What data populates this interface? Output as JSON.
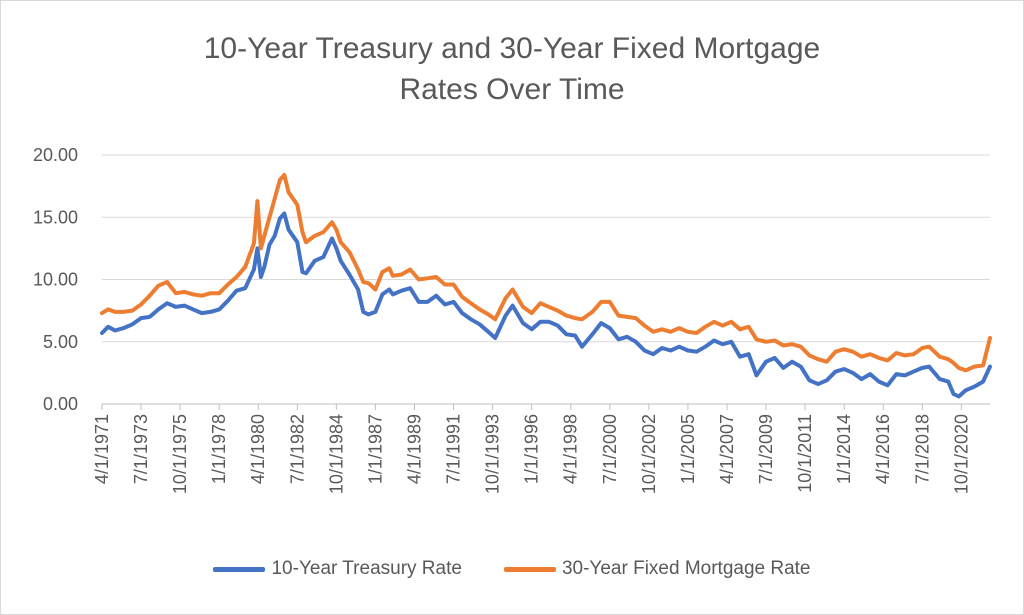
{
  "chart_data": {
    "type": "line",
    "title_line1": "10-Year Treasury and 30-Year Fixed Mortgage",
    "title_line2": "Rates Over Time",
    "xlabel": "",
    "ylabel": "",
    "ylim": [
      0,
      20
    ],
    "xlim": [
      1971.25,
      2022.4
    ],
    "grid": "horizontal",
    "legend_position": "bottom",
    "y_ticks": [
      "0.00",
      "5.00",
      "10.00",
      "15.00",
      "20.00"
    ],
    "x_tick_labels": [
      "4/1/1971",
      "7/1/1973",
      "10/1/1975",
      "1/1/1978",
      "4/1/1980",
      "7/1/1982",
      "10/1/1984",
      "1/1/1987",
      "4/1/1989",
      "7/1/1991",
      "10/1/1993",
      "1/1/1996",
      "4/1/1998",
      "7/1/2000",
      "10/1/2002",
      "1/1/2005",
      "4/1/2007",
      "7/1/2009",
      "10/1/2011",
      "1/1/2014",
      "4/1/2016",
      "7/1/2018",
      "10/1/2020"
    ],
    "x_tick_years": [
      1971.25,
      1973.5,
      1975.75,
      1978.0,
      1980.25,
      1982.5,
      1984.75,
      1987.0,
      1989.25,
      1991.5,
      1993.75,
      1996.0,
      1998.25,
      2000.5,
      2002.75,
      2005.0,
      2007.25,
      2009.5,
      2011.75,
      2014.0,
      2016.25,
      2018.5,
      2020.75
    ],
    "series": [
      {
        "name": "10-Year Treasury Rate",
        "color": "#4472c4",
        "x": [
          1971.25,
          1971.6,
          1972.0,
          1972.5,
          1973.0,
          1973.5,
          1974.0,
          1974.5,
          1975.0,
          1975.5,
          1976.0,
          1976.5,
          1977.0,
          1977.5,
          1978.0,
          1978.5,
          1979.0,
          1979.5,
          1980.0,
          1980.2,
          1980.4,
          1980.6,
          1980.9,
          1981.2,
          1981.5,
          1981.75,
          1982.0,
          1982.5,
          1982.8,
          1983.0,
          1983.5,
          1984.0,
          1984.5,
          1984.75,
          1985.0,
          1985.5,
          1986.0,
          1986.3,
          1986.6,
          1987.0,
          1987.4,
          1987.8,
          1988.0,
          1988.5,
          1989.0,
          1989.5,
          1990.0,
          1990.5,
          1991.0,
          1991.5,
          1992.0,
          1992.5,
          1993.0,
          1993.5,
          1993.9,
          1994.5,
          1994.9,
          1995.5,
          1996.0,
          1996.5,
          1997.0,
          1997.5,
          1998.0,
          1998.5,
          1998.9,
          1999.5,
          2000.0,
          2000.5,
          2001.0,
          2001.5,
          2002.0,
          2002.5,
          2003.0,
          2003.5,
          2004.0,
          2004.5,
          2005.0,
          2005.5,
          2006.0,
          2006.5,
          2007.0,
          2007.5,
          2008.0,
          2008.5,
          2008.95,
          2009.5,
          2010.0,
          2010.5,
          2011.0,
          2011.5,
          2012.0,
          2012.5,
          2013.0,
          2013.5,
          2014.0,
          2014.5,
          2015.0,
          2015.5,
          2016.0,
          2016.5,
          2017.0,
          2017.5,
          2018.0,
          2018.5,
          2018.9,
          2019.5,
          2020.0,
          2020.3,
          2020.6,
          2021.0,
          2021.5,
          2022.0,
          2022.4
        ],
        "values": [
          5.7,
          6.2,
          5.9,
          6.1,
          6.4,
          6.9,
          7.0,
          7.6,
          8.1,
          7.8,
          7.9,
          7.6,
          7.3,
          7.4,
          7.6,
          8.3,
          9.1,
          9.3,
          10.8,
          12.5,
          10.2,
          11.0,
          12.8,
          13.5,
          14.9,
          15.3,
          14.0,
          13.0,
          10.6,
          10.5,
          11.5,
          11.8,
          13.3,
          12.5,
          11.5,
          10.4,
          9.2,
          7.4,
          7.2,
          7.4,
          8.8,
          9.2,
          8.8,
          9.1,
          9.3,
          8.2,
          8.2,
          8.7,
          8.0,
          8.2,
          7.3,
          6.8,
          6.4,
          5.8,
          5.3,
          7.1,
          7.9,
          6.5,
          6.0,
          6.6,
          6.6,
          6.3,
          5.6,
          5.5,
          4.6,
          5.6,
          6.5,
          6.1,
          5.2,
          5.4,
          5.0,
          4.3,
          4.0,
          4.5,
          4.3,
          4.6,
          4.3,
          4.2,
          4.6,
          5.1,
          4.8,
          5.0,
          3.8,
          4.0,
          2.3,
          3.4,
          3.7,
          2.9,
          3.4,
          3.0,
          1.9,
          1.6,
          1.9,
          2.6,
          2.8,
          2.5,
          2.0,
          2.4,
          1.8,
          1.5,
          2.4,
          2.3,
          2.6,
          2.9,
          3.0,
          2.0,
          1.8,
          0.8,
          0.6,
          1.1,
          1.4,
          1.8,
          3.0
        ]
      },
      {
        "name": "30-Year Fixed Mortgage Rate",
        "color": "#ed7d31",
        "x": [
          1971.25,
          1971.6,
          1972.0,
          1972.5,
          1973.0,
          1973.5,
          1974.0,
          1974.5,
          1975.0,
          1975.5,
          1976.0,
          1976.5,
          1977.0,
          1977.5,
          1978.0,
          1978.5,
          1979.0,
          1979.5,
          1980.0,
          1980.2,
          1980.4,
          1980.6,
          1980.9,
          1981.2,
          1981.5,
          1981.75,
          1982.0,
          1982.5,
          1982.8,
          1983.0,
          1983.5,
          1984.0,
          1984.5,
          1984.75,
          1985.0,
          1985.5,
          1986.0,
          1986.3,
          1986.6,
          1987.0,
          1987.4,
          1987.8,
          1988.0,
          1988.5,
          1989.0,
          1989.5,
          1990.0,
          1990.5,
          1991.0,
          1991.5,
          1992.0,
          1992.5,
          1993.0,
          1993.5,
          1993.9,
          1994.5,
          1994.9,
          1995.5,
          1996.0,
          1996.5,
          1997.0,
          1997.5,
          1998.0,
          1998.5,
          1998.9,
          1999.5,
          2000.0,
          2000.5,
          2001.0,
          2001.5,
          2002.0,
          2002.5,
          2003.0,
          2003.5,
          2004.0,
          2004.5,
          2005.0,
          2005.5,
          2006.0,
          2006.5,
          2007.0,
          2007.5,
          2008.0,
          2008.5,
          2008.95,
          2009.5,
          2010.0,
          2010.5,
          2011.0,
          2011.5,
          2012.0,
          2012.5,
          2013.0,
          2013.5,
          2014.0,
          2014.5,
          2015.0,
          2015.5,
          2016.0,
          2016.5,
          2017.0,
          2017.5,
          2018.0,
          2018.5,
          2018.9,
          2019.5,
          2020.0,
          2020.3,
          2020.6,
          2021.0,
          2021.5,
          2022.0,
          2022.4
        ],
        "values": [
          7.3,
          7.6,
          7.4,
          7.4,
          7.5,
          8.0,
          8.7,
          9.5,
          9.8,
          8.9,
          9.0,
          8.8,
          8.7,
          8.9,
          8.9,
          9.6,
          10.2,
          11.0,
          12.9,
          16.3,
          12.5,
          13.5,
          15.0,
          16.5,
          18.0,
          18.4,
          17.0,
          16.0,
          13.8,
          13.0,
          13.5,
          13.8,
          14.6,
          14.0,
          13.0,
          12.2,
          10.8,
          9.8,
          9.7,
          9.2,
          10.6,
          10.9,
          10.3,
          10.4,
          10.8,
          10.0,
          10.1,
          10.2,
          9.6,
          9.6,
          8.6,
          8.1,
          7.6,
          7.2,
          6.8,
          8.5,
          9.2,
          7.8,
          7.3,
          8.1,
          7.8,
          7.5,
          7.1,
          6.9,
          6.8,
          7.4,
          8.2,
          8.2,
          7.1,
          7.0,
          6.9,
          6.3,
          5.8,
          6.0,
          5.8,
          6.1,
          5.8,
          5.7,
          6.2,
          6.6,
          6.3,
          6.6,
          6.0,
          6.2,
          5.2,
          5.0,
          5.1,
          4.7,
          4.8,
          4.6,
          3.9,
          3.6,
          3.4,
          4.2,
          4.4,
          4.2,
          3.8,
          4.0,
          3.7,
          3.5,
          4.1,
          3.9,
          4.0,
          4.5,
          4.6,
          3.8,
          3.6,
          3.3,
          2.9,
          2.7,
          3.0,
          3.1,
          5.3
        ]
      }
    ]
  }
}
